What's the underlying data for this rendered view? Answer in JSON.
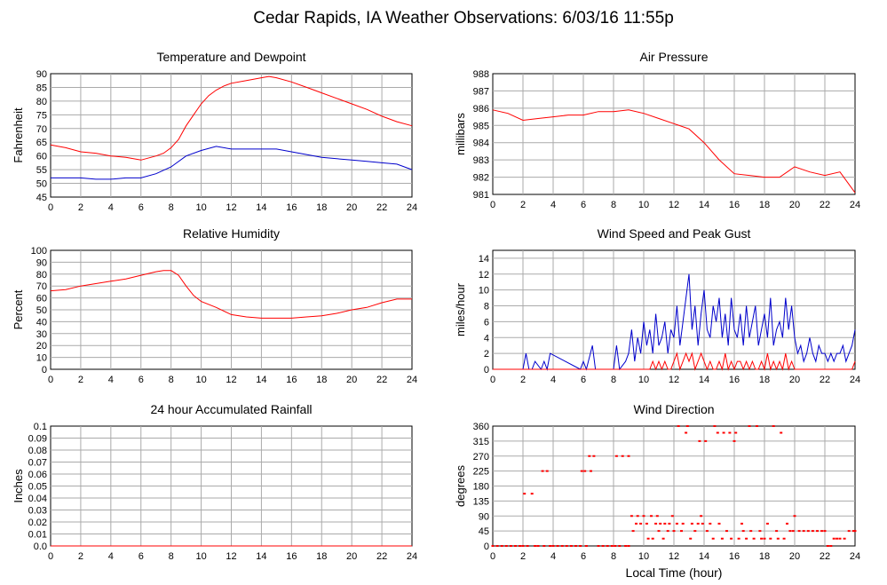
{
  "title": "Cedar Rapids, IA Weather Observations: 6/03/16 11:55p",
  "x_axis_label": "Local Time (hour)",
  "colors": {
    "temperature": "#ff0000",
    "dewpoint": "#0000cc",
    "grid": "#aaaaaa"
  },
  "chart_data": [
    {
      "id": "temperature",
      "type": "line",
      "title": "Temperature and Dewpoint",
      "ylabel": "Fahrenheit",
      "xlabel": "",
      "xlim": [
        0,
        24
      ],
      "ylim": [
        45,
        90
      ],
      "xticks": [
        0,
        2,
        4,
        6,
        8,
        10,
        12,
        14,
        16,
        18,
        20,
        22,
        24
      ],
      "yticks": [
        45,
        50,
        55,
        60,
        65,
        70,
        75,
        80,
        85,
        90
      ],
      "grid": true,
      "series": [
        {
          "color": "#ff0000",
          "x": [
            0,
            1,
            2,
            3,
            4,
            5,
            6,
            7,
            7.5,
            8,
            8.5,
            9,
            9.5,
            10,
            10.5,
            11,
            11.5,
            12,
            13,
            14,
            14.5,
            15,
            16,
            17,
            18,
            19,
            20,
            21,
            22,
            23,
            24
          ],
          "y": [
            64,
            63,
            61.5,
            61,
            60,
            59.5,
            58.5,
            60,
            61,
            63,
            66,
            71,
            75,
            79,
            82,
            84,
            85.5,
            86.5,
            87.5,
            88.5,
            89,
            88.5,
            87,
            85,
            83,
            81,
            79,
            77,
            74.5,
            72.5,
            71
          ]
        },
        {
          "color": "#0000cc",
          "x": [
            0,
            1,
            2,
            3,
            4,
            5,
            6,
            7,
            8,
            9,
            10,
            11,
            12,
            13,
            14,
            15,
            16,
            17,
            18,
            19,
            20,
            21,
            22,
            23,
            24
          ],
          "y": [
            52,
            52,
            52,
            51.5,
            51.5,
            52,
            52,
            53.5,
            56,
            60,
            62,
            63.5,
            62.5,
            62.5,
            62.5,
            62.5,
            61.5,
            60.5,
            59.5,
            59,
            58.5,
            58,
            57.5,
            57,
            55
          ]
        }
      ]
    },
    {
      "id": "pressure",
      "type": "line",
      "title": "Air Pressure",
      "ylabel": "millibars",
      "xlabel": "",
      "xlim": [
        0,
        24
      ],
      "ylim": [
        981,
        988
      ],
      "xticks": [
        0,
        2,
        4,
        6,
        8,
        10,
        12,
        14,
        16,
        18,
        20,
        22,
        24
      ],
      "yticks": [
        981,
        982,
        983,
        984,
        985,
        986,
        987,
        988
      ],
      "grid": true,
      "series": [
        {
          "color": "#ff0000",
          "x": [
            0,
            1,
            2,
            3,
            4,
            5,
            6,
            7,
            8,
            9,
            10,
            11,
            12,
            13,
            14,
            15,
            16,
            17,
            18,
            19,
            20,
            21,
            22,
            23,
            24
          ],
          "y": [
            985.9,
            985.7,
            985.3,
            985.4,
            985.5,
            985.6,
            985.6,
            985.8,
            985.8,
            985.9,
            985.7,
            985.4,
            985.1,
            984.8,
            984.0,
            983.0,
            982.2,
            982.1,
            982.0,
            982.0,
            982.6,
            982.3,
            982.1,
            982.3,
            981.1
          ]
        }
      ]
    },
    {
      "id": "humidity",
      "type": "line",
      "title": "Relative Humidity",
      "ylabel": "Percent",
      "xlabel": "",
      "xlim": [
        0,
        24
      ],
      "ylim": [
        0,
        100
      ],
      "xticks": [
        0,
        2,
        4,
        6,
        8,
        10,
        12,
        14,
        16,
        18,
        20,
        22,
        24
      ],
      "yticks": [
        0,
        10,
        20,
        30,
        40,
        50,
        60,
        70,
        80,
        90,
        100
      ],
      "grid": true,
      "series": [
        {
          "color": "#ff0000",
          "x": [
            0,
            1,
            2,
            3,
            4,
            5,
            6,
            7,
            7.5,
            8,
            8.5,
            9,
            9.5,
            10,
            11,
            12,
            13,
            14,
            15,
            16,
            17,
            18,
            19,
            20,
            21,
            22,
            23,
            24
          ],
          "y": [
            66,
            67,
            70,
            72,
            74,
            76,
            79,
            82,
            83,
            83,
            79,
            70,
            62,
            57,
            52,
            46,
            44,
            43,
            43,
            43,
            44,
            45,
            47,
            50,
            52,
            56,
            59,
            59
          ]
        }
      ]
    },
    {
      "id": "wind",
      "type": "line",
      "title": "Wind Speed and Peak Gust",
      "ylabel": "miles/hour",
      "xlabel": "",
      "xlim": [
        0,
        24
      ],
      "ylim": [
        0,
        15
      ],
      "xticks": [
        0,
        2,
        4,
        6,
        8,
        10,
        12,
        14,
        16,
        18,
        20,
        22,
        24
      ],
      "yticks": [
        0,
        2,
        4,
        6,
        8,
        10,
        12,
        14
      ],
      "grid": true,
      "series": [
        {
          "color": "#0000cc",
          "x": [
            0,
            2,
            2.2,
            2.4,
            2.6,
            2.8,
            3.2,
            3.4,
            3.6,
            3.8,
            5.8,
            6.0,
            6.2,
            6.6,
            6.8,
            7.0,
            8.0,
            8.2,
            8.4,
            8.8,
            9.0,
            9.2,
            9.4,
            9.6,
            9.8,
            10.0,
            10.2,
            10.4,
            10.6,
            10.8,
            11.0,
            11.2,
            11.4,
            11.6,
            11.8,
            12.0,
            12.2,
            12.4,
            12.6,
            12.8,
            13.0,
            13.2,
            13.4,
            13.6,
            13.8,
            14.0,
            14.2,
            14.4,
            14.6,
            14.8,
            15.0,
            15.2,
            15.4,
            15.6,
            15.8,
            16.0,
            16.2,
            16.4,
            16.6,
            16.8,
            17.0,
            17.2,
            17.4,
            17.6,
            17.8,
            18.0,
            18.2,
            18.4,
            18.6,
            18.8,
            19.0,
            19.2,
            19.4,
            19.6,
            19.8,
            20.0,
            20.2,
            20.4,
            20.6,
            20.8,
            21.0,
            21.2,
            21.4,
            21.6,
            21.8,
            22.0,
            22.2,
            22.4,
            22.6,
            22.8,
            23.0,
            23.2,
            23.4,
            23.6,
            23.8,
            24.0
          ],
          "y": [
            0,
            0,
            2,
            0,
            0,
            1,
            0,
            1,
            0,
            2,
            0,
            1,
            0,
            3,
            0,
            0,
            0,
            3,
            0,
            1,
            2,
            5,
            1,
            4,
            2,
            6,
            3,
            5,
            2,
            7,
            3,
            4,
            6,
            2,
            5,
            4,
            8,
            3,
            6,
            9,
            12,
            5,
            8,
            3,
            7,
            10,
            5,
            4,
            8,
            6,
            9,
            4,
            7,
            3,
            9,
            5,
            4,
            7,
            3,
            8,
            4,
            6,
            8,
            3,
            5,
            7,
            4,
            9,
            3,
            5,
            6,
            4,
            9,
            5,
            8,
            4,
            2,
            3,
            1,
            2,
            4,
            2,
            1,
            3,
            2,
            2,
            1,
            2,
            1,
            2,
            2,
            3,
            1,
            2,
            3,
            5
          ]
        },
        {
          "color": "#ff0000",
          "x": [
            0,
            10.4,
            10.6,
            10.8,
            11.0,
            11.2,
            11.4,
            11.6,
            11.8,
            12.0,
            12.2,
            12.4,
            12.6,
            12.8,
            13.0,
            13.2,
            13.4,
            13.6,
            13.8,
            14.0,
            14.2,
            14.4,
            14.6,
            14.8,
            15.0,
            15.2,
            15.4,
            15.6,
            15.8,
            16.0,
            16.2,
            16.4,
            16.6,
            16.8,
            17.0,
            17.2,
            17.4,
            17.6,
            17.8,
            18.0,
            18.2,
            18.4,
            18.6,
            18.8,
            19.0,
            19.2,
            19.4,
            19.6,
            19.8,
            20.0,
            23.8,
            24.0
          ],
          "y": [
            0,
            0,
            1,
            0,
            1,
            0,
            1,
            0,
            0,
            1,
            2,
            0,
            1,
            2,
            1,
            2,
            0,
            1,
            2,
            1,
            0,
            1,
            0,
            0,
            1,
            0,
            2,
            0,
            1,
            0,
            1,
            1,
            0,
            1,
            0,
            1,
            0,
            0,
            1,
            0,
            2,
            0,
            1,
            0,
            1,
            0,
            2,
            0,
            1,
            0,
            0,
            1
          ]
        }
      ]
    },
    {
      "id": "rainfall",
      "type": "line",
      "title": "24 hour Accumulated Rainfall",
      "ylabel": "Inches",
      "xlabel": "",
      "xlim": [
        0,
        24
      ],
      "ylim": [
        0,
        0.1
      ],
      "xticks": [
        0,
        2,
        4,
        6,
        8,
        10,
        12,
        14,
        16,
        18,
        20,
        22,
        24
      ],
      "yticks": [
        0.0,
        0.01,
        0.02,
        0.03,
        0.04,
        0.05,
        0.06,
        0.07,
        0.08,
        0.09,
        0.1
      ],
      "ytick_labels": [
        "0.0",
        "0.01",
        "0.02",
        "0.03",
        "0.04",
        "0.05",
        "0.06",
        "0.07",
        "0.08",
        "0.09",
        "0.1"
      ],
      "grid": true,
      "series": [
        {
          "color": "#ff0000",
          "x": [
            0,
            24
          ],
          "y": [
            0,
            0
          ]
        }
      ]
    },
    {
      "id": "direction",
      "type": "scatter",
      "title": "Wind Direction",
      "ylabel": "degrees",
      "xlabel": "Local Time (hour)",
      "xlim": [
        0,
        24
      ],
      "ylim": [
        0,
        360
      ],
      "xticks": [
        0,
        2,
        4,
        6,
        8,
        10,
        12,
        14,
        16,
        18,
        20,
        22,
        24
      ],
      "yticks": [
        0,
        45,
        90,
        135,
        180,
        225,
        270,
        315,
        360
      ],
      "grid": true,
      "series": [
        {
          "color": "#ff0000",
          "x": [
            0.0,
            0.3,
            0.6,
            0.9,
            1.2,
            1.5,
            1.8,
            2.0,
            2.1,
            2.3,
            2.6,
            2.8,
            3.0,
            3.3,
            3.4,
            3.6,
            3.8,
            4.0,
            4.3,
            4.6,
            4.9,
            5.2,
            5.5,
            5.8,
            5.9,
            6.1,
            6.2,
            6.4,
            6.5,
            6.7,
            7.0,
            7.3,
            7.6,
            7.9,
            8.1,
            8.2,
            8.4,
            8.6,
            8.8,
            9.0,
            9.0,
            9.2,
            9.3,
            9.5,
            9.6,
            9.8,
            10.0,
            10.2,
            10.3,
            10.5,
            10.6,
            10.8,
            10.9,
            11.0,
            11.1,
            11.3,
            11.4,
            11.6,
            11.7,
            11.9,
            12.0,
            12.2,
            12.3,
            12.5,
            12.6,
            12.8,
            12.9,
            13.1,
            13.2,
            13.4,
            13.6,
            13.7,
            13.8,
            13.9,
            14.1,
            14.2,
            14.4,
            14.6,
            14.7,
            14.9,
            15.0,
            15.2,
            15.3,
            15.5,
            15.7,
            15.8,
            16.0,
            16.1,
            16.3,
            16.5,
            16.6,
            16.8,
            17.0,
            17.1,
            17.3,
            17.5,
            17.7,
            17.8,
            18.0,
            18.2,
            18.4,
            18.6,
            18.8,
            18.9,
            19.1,
            19.3,
            19.5,
            19.7,
            19.9,
            20.0,
            20.3,
            20.6,
            20.9,
            21.2,
            21.5,
            21.8,
            22.0,
            22.2,
            22.4,
            22.6,
            22.8,
            23.0,
            23.3,
            23.6,
            23.9,
            24.0
          ],
          "y": [
            0,
            0,
            0,
            0,
            0,
            0,
            0,
            0,
            157,
            0,
            157,
            0,
            0,
            225,
            0,
            225,
            0,
            0,
            0,
            0,
            0,
            0,
            0,
            0,
            225,
            225,
            0,
            270,
            225,
            270,
            0,
            0,
            0,
            0,
            0,
            270,
            0,
            270,
            0,
            270,
            0,
            90,
            45,
            67,
            90,
            67,
            90,
            67,
            22,
            90,
            22,
            67,
            90,
            45,
            67,
            22,
            67,
            45,
            67,
            90,
            45,
            67,
            360,
            45,
            67,
            340,
            360,
            22,
            67,
            45,
            67,
            315,
            90,
            67,
            315,
            45,
            67,
            22,
            360,
            340,
            67,
            22,
            340,
            45,
            340,
            22,
            315,
            340,
            22,
            67,
            45,
            22,
            360,
            45,
            22,
            360,
            45,
            22,
            22,
            67,
            22,
            360,
            45,
            22,
            340,
            22,
            67,
            45,
            45,
            90,
            45,
            45,
            45,
            45,
            45,
            45,
            45,
            0,
            0,
            22,
            22,
            22,
            22,
            45,
            45,
            45
          ]
        }
      ]
    }
  ]
}
